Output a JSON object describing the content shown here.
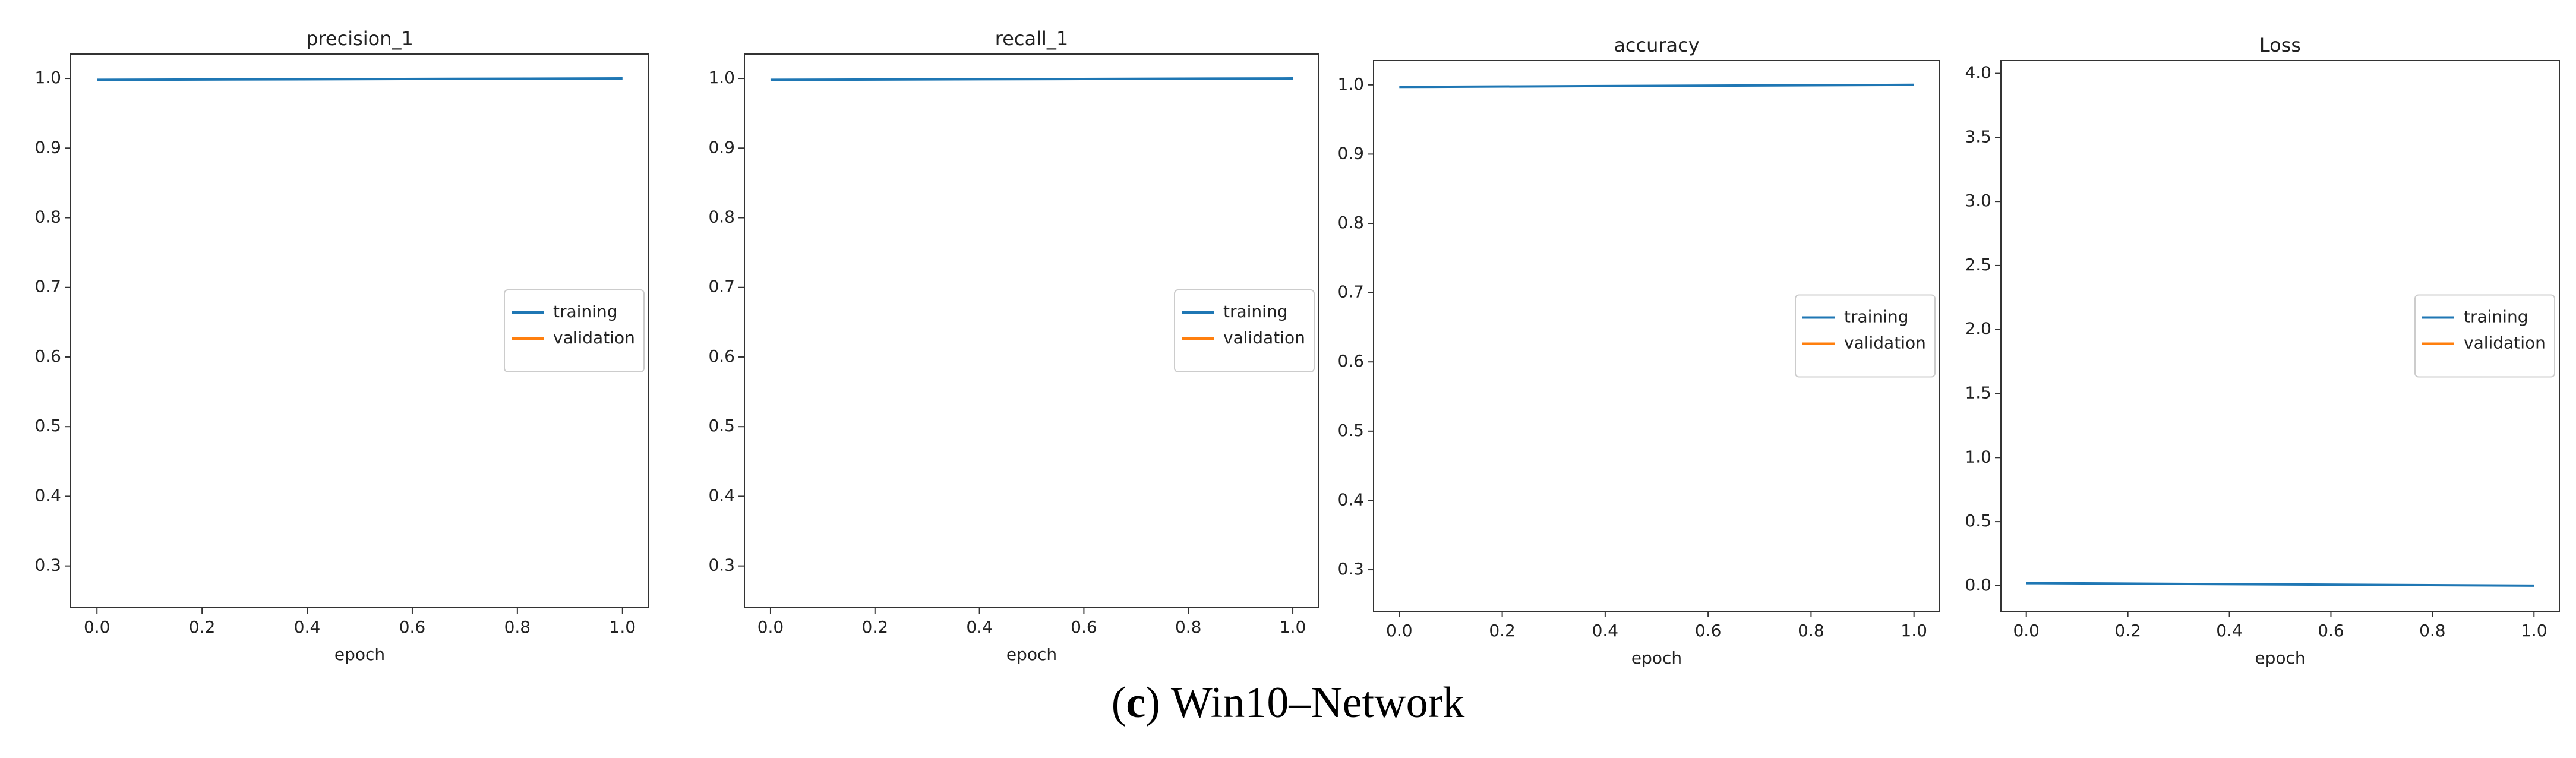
{
  "chart_data": [
    {
      "type": "line",
      "title": "precision_1",
      "xlabel": "epoch",
      "x": [
        0,
        1
      ],
      "series": [
        {
          "name": "training",
          "color": "#1f77b4",
          "values": [
            0.998,
            1.0
          ]
        },
        {
          "name": "validation",
          "color": "#ff7f0e",
          "values": [
            null,
            null
          ]
        }
      ],
      "xlim": [
        -0.05,
        1.05
      ],
      "ylim": [
        0.24,
        1.035
      ],
      "xticks": [
        {
          "value": 0,
          "label": "0.0"
        },
        0.2,
        0.4,
        0.6,
        0.8,
        {
          "value": 1,
          "label": "1.0"
        }
      ],
      "yticks": [
        0.3,
        0.4,
        0.5,
        0.6,
        0.7,
        0.8,
        0.9,
        {
          "value": 1,
          "label": "1.0"
        }
      ],
      "legend": "center right"
    },
    {
      "type": "line",
      "title": "recall_1",
      "xlabel": "epoch",
      "x": [
        0,
        1
      ],
      "series": [
        {
          "name": "training",
          "color": "#1f77b4",
          "values": [
            0.998,
            1.0
          ]
        },
        {
          "name": "validation",
          "color": "#ff7f0e",
          "values": [
            null,
            null
          ]
        }
      ],
      "xlim": [
        -0.05,
        1.05
      ],
      "ylim": [
        0.24,
        1.035
      ],
      "xticks": [
        {
          "value": 0,
          "label": "0.0"
        },
        0.2,
        0.4,
        0.6,
        0.8,
        {
          "value": 1,
          "label": "1.0"
        }
      ],
      "yticks": [
        0.3,
        0.4,
        0.5,
        0.6,
        0.7,
        0.8,
        0.9,
        {
          "value": 1,
          "label": "1.0"
        }
      ],
      "legend": "center right"
    },
    {
      "type": "line",
      "title": "accuracy",
      "xlabel": "epoch",
      "x": [
        0,
        1
      ],
      "series": [
        {
          "name": "training",
          "color": "#1f77b4",
          "values": [
            0.997,
            1.0
          ]
        },
        {
          "name": "validation",
          "color": "#ff7f0e",
          "values": [
            null,
            null
          ]
        }
      ],
      "xlim": [
        -0.05,
        1.05
      ],
      "ylim": [
        0.24,
        1.035
      ],
      "xticks": [
        {
          "value": 0,
          "label": "0.0"
        },
        0.2,
        0.4,
        0.6,
        0.8,
        {
          "value": 1,
          "label": "1.0"
        }
      ],
      "yticks": [
        0.3,
        0.4,
        0.5,
        0.6,
        0.7,
        0.8,
        0.9,
        {
          "value": 1,
          "label": "1.0"
        }
      ],
      "legend": "center right"
    },
    {
      "type": "line",
      "title": "Loss",
      "xlabel": "epoch",
      "x": [
        0,
        1
      ],
      "series": [
        {
          "name": "training",
          "color": "#1f77b4",
          "values": [
            0.02,
            0.0
          ]
        },
        {
          "name": "validation",
          "color": "#ff7f0e",
          "values": [
            null,
            null
          ]
        }
      ],
      "xlim": [
        -0.05,
        1.05
      ],
      "ylim": [
        -0.2,
        4.1
      ],
      "xticks": [
        {
          "value": 0,
          "label": "0.0"
        },
        0.2,
        0.4,
        0.6,
        0.8,
        {
          "value": 1,
          "label": "1.0"
        }
      ],
      "yticks": [
        {
          "value": 0,
          "label": "0.0"
        },
        0.5,
        {
          "value": 1,
          "label": "1.0"
        },
        1.5,
        {
          "value": 2,
          "label": "2.0"
        },
        2.5,
        {
          "value": 3,
          "label": "3.0"
        },
        3.5,
        {
          "value": 4,
          "label": "4.0"
        }
      ],
      "legend": "center right"
    }
  ],
  "caption": {
    "open": "(",
    "letter": "c",
    "close": ")",
    "text": "Win10–Network"
  }
}
